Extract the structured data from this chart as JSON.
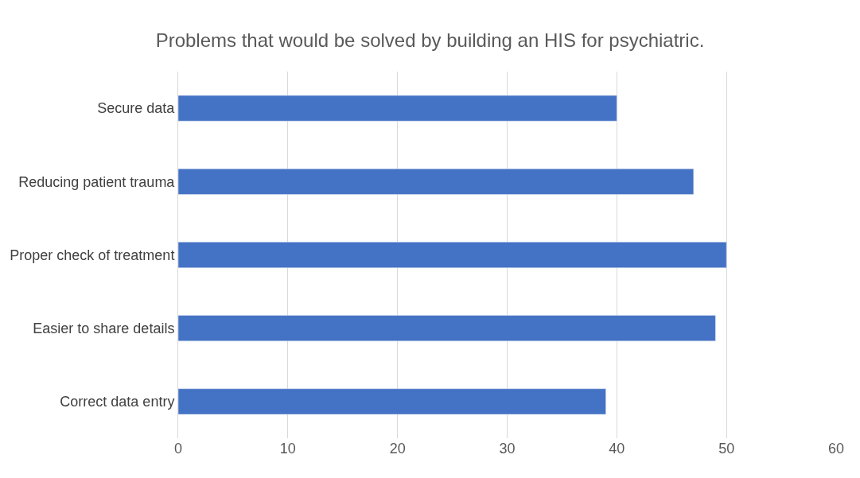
{
  "chart_data": {
    "type": "bar",
    "title": "Problems that would be solved by building an HIS for psychiatric.",
    "orientation": "horizontal",
    "categories": [
      "Secure data",
      "Reducing patient trauma",
      "Proper check of treatment",
      "Easier to share details",
      "Correct data entry"
    ],
    "values": [
      40,
      47,
      50,
      49,
      39
    ],
    "color": "#4472c4",
    "xlim": [
      0,
      60
    ],
    "xticks": [
      0,
      10,
      20,
      30,
      40,
      50,
      60
    ],
    "grid": "x",
    "legend": false
  }
}
